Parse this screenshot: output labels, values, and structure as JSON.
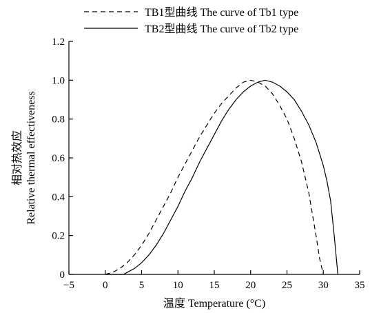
{
  "chart_data": {
    "type": "line",
    "xlabel": "温度 Temperature (°C)",
    "ylabel_cn": "相对热效应",
    "ylabel_en": "Relative thermal effectiveness",
    "xlim": [
      -5,
      35
    ],
    "ylim": [
      0,
      1.2
    ],
    "x_ticks": [
      -5,
      0,
      5,
      10,
      15,
      20,
      25,
      30,
      35
    ],
    "x_tick_labels": [
      "−5",
      "0",
      "5",
      "10",
      "15",
      "20",
      "25",
      "30",
      "35"
    ],
    "y_ticks": [
      0,
      0.2,
      0.4,
      0.6,
      0.8,
      1.0,
      1.2
    ],
    "y_tick_labels": [
      "0",
      "0.2",
      "0.4",
      "0.6",
      "0.8",
      "1.0",
      "1.2"
    ],
    "grid": false,
    "legend_position": "top-left",
    "series": [
      {
        "name": "TB1型曲线 The curve of Tb1 type",
        "style": "dashed",
        "x": [
          0,
          1,
          2,
          3,
          4,
          5,
          6,
          7,
          8,
          9,
          10,
          11,
          12,
          13,
          14,
          15,
          16,
          17,
          18,
          19,
          20,
          21,
          22,
          23,
          24,
          25,
          26,
          27,
          28,
          29,
          29.5,
          30
        ],
        "y": [
          0,
          0.01,
          0.03,
          0.06,
          0.1,
          0.15,
          0.21,
          0.28,
          0.35,
          0.42,
          0.5,
          0.57,
          0.64,
          0.71,
          0.77,
          0.83,
          0.88,
          0.92,
          0.96,
          0.99,
          1.0,
          0.99,
          0.97,
          0.93,
          0.87,
          0.8,
          0.7,
          0.58,
          0.42,
          0.2,
          0.08,
          0
        ]
      },
      {
        "name": "TB2型曲线 The curve of Tb2 type",
        "style": "solid",
        "x": [
          0,
          2.5,
          3,
          4,
          5,
          6,
          7,
          8,
          9,
          10,
          11,
          12,
          13,
          14,
          15,
          16,
          17,
          18,
          19,
          20,
          21,
          22,
          23,
          24,
          25,
          26,
          27,
          28,
          29,
          30,
          30.5,
          31,
          31.5,
          32
        ],
        "y": [
          0,
          0,
          0.01,
          0.03,
          0.06,
          0.1,
          0.15,
          0.21,
          0.28,
          0.35,
          0.43,
          0.5,
          0.58,
          0.65,
          0.72,
          0.79,
          0.85,
          0.9,
          0.94,
          0.97,
          0.99,
          1.0,
          0.99,
          0.97,
          0.94,
          0.9,
          0.84,
          0.77,
          0.68,
          0.56,
          0.48,
          0.38,
          0.2,
          0
        ]
      }
    ]
  }
}
